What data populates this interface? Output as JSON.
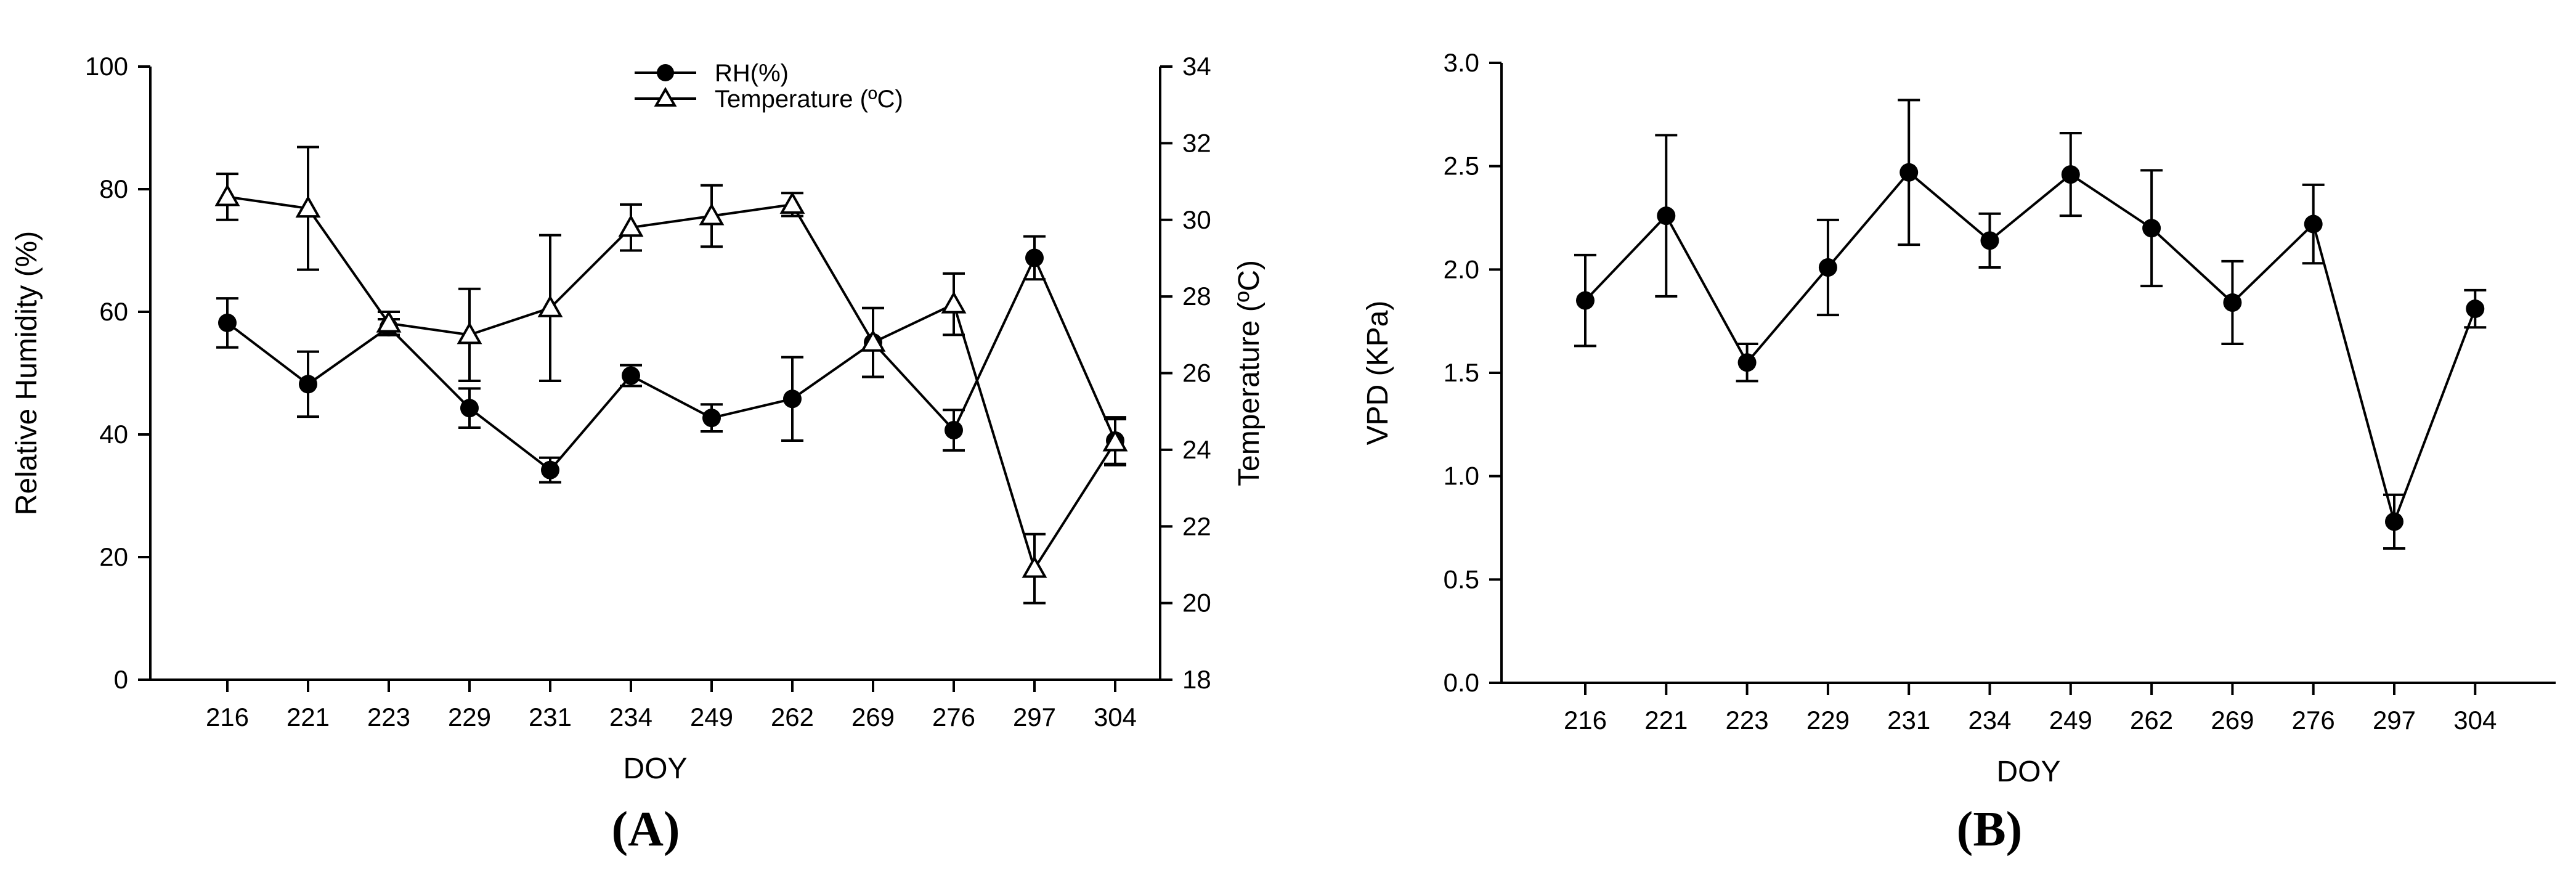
{
  "chart_data": [
    {
      "type": "line",
      "panel_label": "(A)",
      "xlabel": "DOY",
      "ylabel": "Relative Humidity (%)",
      "y2label": "Temperature (ºC)",
      "categories": [
        "216",
        "221",
        "223",
        "229",
        "231",
        "234",
        "249",
        "262",
        "269",
        "276",
        "297",
        "304"
      ],
      "ylim": [
        0,
        100
      ],
      "yticks": [
        "0",
        "20",
        "40",
        "60",
        "80",
        "100"
      ],
      "y2lim": [
        18,
        34
      ],
      "y2ticks": [
        "18",
        "20",
        "22",
        "24",
        "26",
        "28",
        "30",
        "32",
        "34"
      ],
      "legend_position": "top-center",
      "series": [
        {
          "name": "RH(%)",
          "marker": "filled-circle",
          "axis": "left",
          "values": [
            58.2,
            48.2,
            57.5,
            44.3,
            34.2,
            49.6,
            42.7,
            45.8,
            55.0,
            40.7,
            68.8,
            39.0
          ],
          "errors": [
            4.0,
            5.3,
            1.3,
            3.2,
            2.0,
            1.7,
            2.2,
            6.8,
            5.6,
            3.3,
            3.5,
            3.8
          ]
        },
        {
          "name": "Temperature (ºC)",
          "marker": "open-triangle",
          "axis": "right",
          "values": [
            30.6,
            30.3,
            27.3,
            27.0,
            27.7,
            29.8,
            30.1,
            30.4,
            26.8,
            27.8,
            20.9,
            24.2
          ],
          "errors": [
            0.6,
            1.6,
            0.3,
            1.2,
            1.9,
            0.6,
            0.8,
            0.3,
            0.9,
            0.8,
            0.9,
            0.6
          ]
        }
      ]
    },
    {
      "type": "line",
      "panel_label": "(B)",
      "xlabel": "DOY",
      "ylabel": "VPD (KPa)",
      "categories": [
        "216",
        "221",
        "223",
        "229",
        "231",
        "234",
        "249",
        "262",
        "269",
        "276",
        "297",
        "304"
      ],
      "ylim": [
        0,
        3
      ],
      "yticks": [
        "0.0",
        "0.5",
        "1.0",
        "1.5",
        "2.0",
        "2.5",
        "3.0"
      ],
      "series": [
        {
          "name": "VPD",
          "marker": "filled-circle",
          "values": [
            1.85,
            2.26,
            1.55,
            2.01,
            2.47,
            2.14,
            2.46,
            2.2,
            1.84,
            2.22,
            0.78,
            1.81
          ],
          "errors": [
            0.22,
            0.39,
            0.09,
            0.23,
            0.35,
            0.13,
            0.2,
            0.28,
            0.2,
            0.19,
            0.13,
            0.09
          ]
        }
      ]
    }
  ]
}
